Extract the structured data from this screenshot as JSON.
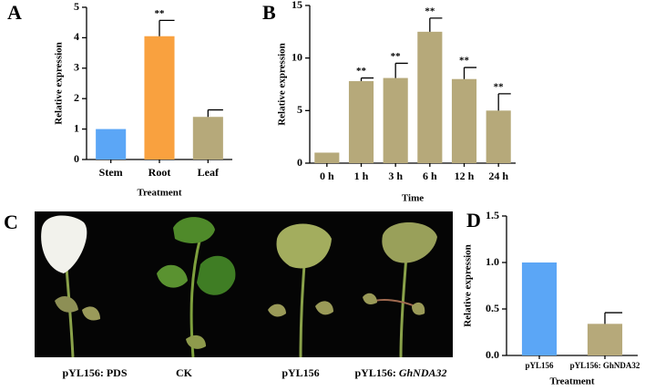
{
  "chart_data": [
    {
      "type": "bar",
      "panel_label": "A",
      "ylabel": "Relative expression",
      "xlabel": "Treatment",
      "categories": [
        "Stem",
        "Root",
        "Leaf"
      ],
      "values": [
        1,
        4.05,
        1.4
      ],
      "errors": [
        null,
        0.52,
        0.23
      ],
      "significance": [
        null,
        "**",
        null
      ],
      "colors": [
        "#5ba6f6",
        "#f9a13f",
        "#b6a97a"
      ],
      "ylim": [
        0,
        5
      ],
      "yticks": [
        0,
        1,
        2,
        3,
        4,
        5
      ]
    },
    {
      "type": "bar",
      "panel_label": "B",
      "ylabel": "Relative expression",
      "xlabel": "Time",
      "categories": [
        "0 h",
        "1 h",
        "3 h",
        "6 h",
        "12 h",
        "24 h"
      ],
      "values": [
        1,
        7.8,
        8.1,
        12.5,
        8,
        5
      ],
      "errors": [
        null,
        0.3,
        1.4,
        1.3,
        1.1,
        1.6
      ],
      "significance": [
        null,
        "**",
        "**",
        "**",
        "**",
        "**"
      ],
      "color": "#b6a97a",
      "ylim": [
        0,
        15
      ],
      "yticks": [
        0,
        5,
        10,
        15
      ]
    },
    {
      "type": "bar",
      "panel_label": "D",
      "ylabel": "Relative expression",
      "xlabel": "Treatment",
      "categories": [
        "pYL156",
        "pYL156: GhNDA32"
      ],
      "values": [
        1,
        0.34
      ],
      "errors": [
        null,
        0.12
      ],
      "significance": [
        null,
        null
      ],
      "colors": [
        "#5ba6f6",
        "#b6a97a"
      ],
      "ylim": [
        0,
        1.5
      ],
      "yticks": [
        {
          "value": 0,
          "label": "0.0"
        },
        {
          "value": 0.5,
          "label": "0.5"
        },
        {
          "value": 1,
          "label": "1.0"
        },
        {
          "value": 1.5,
          "label": "1.5"
        }
      ]
    }
  ],
  "photo_panel": {
    "panel_label": "C",
    "labels": [
      {
        "text": "pYL156: PDS"
      },
      {
        "text": "CK"
      },
      {
        "text": "pYL156"
      },
      {
        "text": "pYL156: ",
        "italic": "GhNDA32"
      }
    ]
  }
}
